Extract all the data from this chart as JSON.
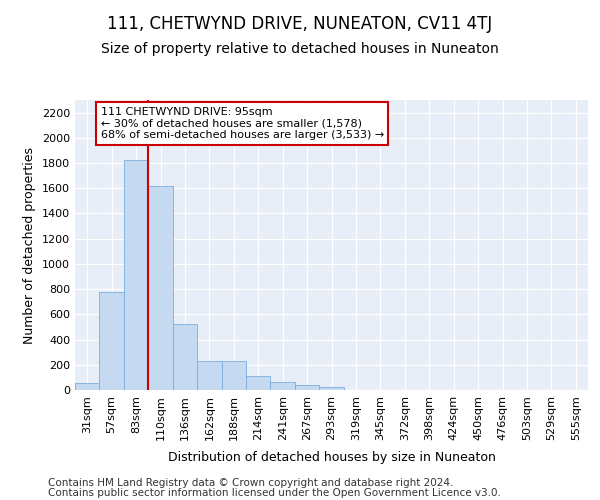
{
  "title": "111, CHETWYND DRIVE, NUNEATON, CV11 4TJ",
  "subtitle": "Size of property relative to detached houses in Nuneaton",
  "xlabel": "Distribution of detached houses by size in Nuneaton",
  "ylabel": "Number of detached properties",
  "categories": [
    "31sqm",
    "57sqm",
    "83sqm",
    "110sqm",
    "136sqm",
    "162sqm",
    "188sqm",
    "214sqm",
    "241sqm",
    "267sqm",
    "293sqm",
    "319sqm",
    "345sqm",
    "372sqm",
    "398sqm",
    "424sqm",
    "450sqm",
    "476sqm",
    "503sqm",
    "529sqm",
    "555sqm"
  ],
  "values": [
    55,
    775,
    1825,
    1615,
    520,
    230,
    230,
    110,
    60,
    40,
    20,
    0,
    0,
    0,
    0,
    0,
    0,
    0,
    0,
    0,
    0
  ],
  "bar_color": "#c5d9f1",
  "bar_edgecolor": "#7aadde",
  "redline_color": "#cc0000",
  "annotation_text": "111 CHETWYND DRIVE: 95sqm\n← 30% of detached houses are smaller (1,578)\n68% of semi-detached houses are larger (3,533) →",
  "annotation_box_facecolor": "#ffffff",
  "annotation_box_edgecolor": "#cc0000",
  "ylim": [
    0,
    2300
  ],
  "yticks": [
    0,
    200,
    400,
    600,
    800,
    1000,
    1200,
    1400,
    1600,
    1800,
    2000,
    2200
  ],
  "footer_line1": "Contains HM Land Registry data © Crown copyright and database right 2024.",
  "footer_line2": "Contains public sector information licensed under the Open Government Licence v3.0.",
  "plot_bg_color": "#e8eef7",
  "fig_bg_color": "#ffffff",
  "grid_color": "#ffffff",
  "title_fontsize": 12,
  "subtitle_fontsize": 10,
  "axis_label_fontsize": 9,
  "tick_fontsize": 8,
  "annotation_fontsize": 8,
  "footer_fontsize": 7.5
}
